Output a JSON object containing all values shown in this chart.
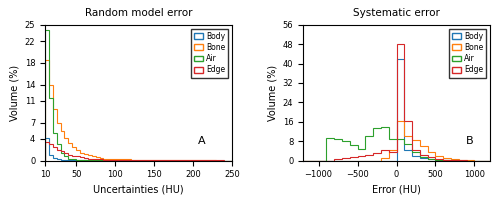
{
  "left_title": "Random model error",
  "right_title": "Systematic error",
  "left_xlabel": "Uncertainties (HU)",
  "right_xlabel": "Error (HU)",
  "ylabel": "Volume (%)",
  "left_label": "A",
  "right_label": "B",
  "legend_labels": [
    "Body",
    "Bone",
    "Air",
    "Edge"
  ],
  "colors": [
    "#1f77b4",
    "#ff7f0e",
    "#2ca02c",
    "#d62728"
  ],
  "left_xlim": [
    10,
    250
  ],
  "left_ylim": [
    0,
    25.0
  ],
  "left_yticks": [
    0.0,
    4.0,
    7.0,
    11.0,
    14.0,
    18.0,
    22.0,
    25.0
  ],
  "right_xlim": [
    -1200,
    1200
  ],
  "right_ylim": [
    0,
    56.0
  ],
  "right_yticks": [
    0.0,
    8.0,
    16.0,
    24.0,
    32.0,
    40.0,
    48.0,
    56.0
  ],
  "left_xticks": [
    10,
    50,
    100,
    150,
    200,
    250
  ],
  "right_xticks": [
    -1000,
    -500,
    0,
    500,
    1000
  ],
  "left_bin_edges": [
    10,
    15,
    20,
    25,
    30,
    35,
    40,
    45,
    50,
    55,
    60,
    65,
    70,
    75,
    80,
    85,
    90,
    95,
    100,
    110,
    120,
    130,
    140,
    150,
    160,
    170,
    180,
    190,
    200,
    210,
    220,
    230,
    240,
    250
  ],
  "left_body": [
    4.2,
    1.0,
    0.5,
    0.3,
    0.2,
    0.15,
    0.1,
    0.1,
    0.08,
    0.07,
    0.06,
    0.05,
    0.05,
    0.04,
    0.03,
    0.03,
    0.02,
    0.02,
    0.02,
    0.02,
    0.01,
    0.01,
    0.01,
    0.01,
    0.01,
    0.01,
    0.01,
    0.01,
    0.01,
    0.01,
    0.01,
    0.01,
    0.0
  ],
  "left_bone": [
    18.5,
    14.0,
    9.5,
    7.0,
    5.5,
    4.2,
    3.3,
    2.6,
    2.0,
    1.5,
    1.2,
    1.0,
    0.8,
    0.7,
    0.5,
    0.4,
    0.4,
    0.3,
    0.3,
    0.25,
    0.2,
    0.15,
    0.1,
    0.1,
    0.08,
    0.07,
    0.05,
    0.05,
    0.1,
    0.08,
    0.05,
    0.03,
    0.0
  ],
  "left_air": [
    24.0,
    11.5,
    5.0,
    3.0,
    1.5,
    0.8,
    0.4,
    0.3,
    0.2,
    0.15,
    0.1,
    0.08,
    0.06,
    0.05,
    0.04,
    0.03,
    0.02,
    0.02,
    0.02,
    0.01,
    0.01,
    0.01,
    0.01,
    0.01,
    0.0,
    0.0,
    0.0,
    0.0,
    0.0,
    0.0,
    0.0,
    0.0,
    0.0
  ],
  "left_edge": [
    3.5,
    3.0,
    2.5,
    2.0,
    1.7,
    1.4,
    1.1,
    0.9,
    0.8,
    0.6,
    0.5,
    0.4,
    0.35,
    0.3,
    0.25,
    0.2,
    0.18,
    0.15,
    0.13,
    0.12,
    0.1,
    0.08,
    0.07,
    0.06,
    0.05,
    0.05,
    0.04,
    0.04,
    0.08,
    0.06,
    0.05,
    0.04,
    0.0
  ],
  "right_bin_edges": [
    -1200,
    -1100,
    -1000,
    -900,
    -800,
    -700,
    -600,
    -500,
    -400,
    -300,
    -200,
    -100,
    0,
    100,
    200,
    300,
    400,
    500,
    600,
    700,
    800,
    900,
    1000,
    1100,
    1200
  ],
  "right_body": [
    0,
    0,
    0,
    0,
    0,
    0,
    0,
    0,
    0,
    0,
    0,
    0,
    42.0,
    4.5,
    2.0,
    1.0,
    0.5,
    0.3,
    0.2,
    0.1,
    0.05,
    0.02,
    0,
    0
  ],
  "right_bone": [
    0,
    0,
    0,
    0,
    0,
    0,
    0,
    0,
    0,
    0,
    1.0,
    4.5,
    16.5,
    10.0,
    8.5,
    6.0,
    3.5,
    2.0,
    1.0,
    0.5,
    0.3,
    0.1,
    0.05,
    0
  ],
  "right_air": [
    0,
    0,
    0,
    9.5,
    9.0,
    8.0,
    6.5,
    5.0,
    10.0,
    13.5,
    14.0,
    9.0,
    9.0,
    7.0,
    3.5,
    1.5,
    0.5,
    0.3,
    0.2,
    0.1,
    0.05,
    0.02,
    0,
    0
  ],
  "right_edge": [
    0,
    0,
    0,
    0,
    0.5,
    1.0,
    1.5,
    2.0,
    2.5,
    3.0,
    4.5,
    3.5,
    48.0,
    16.5,
    4.5,
    2.5,
    1.5,
    0.8,
    0.4,
    0.2,
    0.1,
    0.05,
    0,
    0
  ]
}
